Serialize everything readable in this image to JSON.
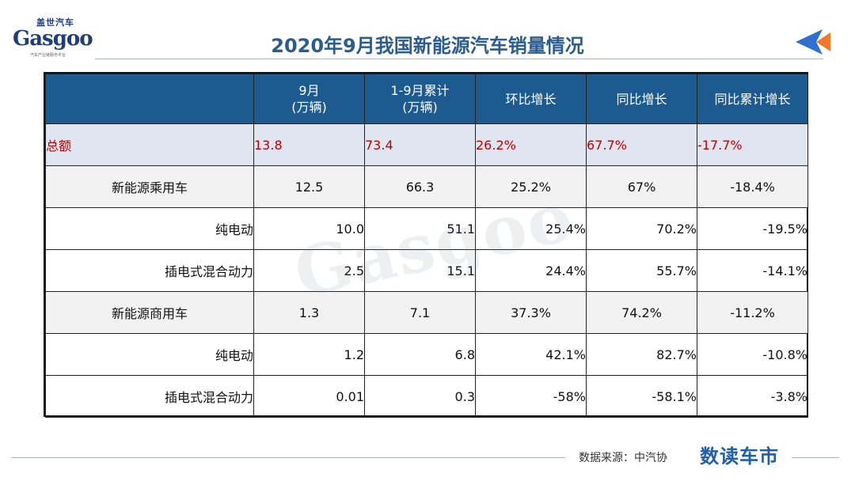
{
  "logo": {
    "top_text": "盖世汽车",
    "main_text": "Gasgoo",
    "sub_text": "汽车产业链服务平台"
  },
  "title": "2020年9月我国新能源汽车销量情况",
  "table": {
    "headers": [
      "",
      "9月\n(万辆)",
      "1-9月累计\n(万辆)",
      "环比增长",
      "同比增长",
      "同比累计增长"
    ],
    "total": {
      "label": "总额",
      "values": [
        "13.8",
        "73.4",
        "26.2%",
        "67.7%",
        "-17.7%"
      ]
    },
    "rows": [
      {
        "label": "新能源乘用车",
        "values": [
          "12.5",
          "66.3",
          "25.2%",
          "67%",
          "-18.4%"
        ]
      },
      {
        "label": "纯电动",
        "values": [
          "10.0",
          "51.1",
          "25.4%",
          "70.2%",
          "-19.5%"
        ]
      },
      {
        "label": "插电式混合动力",
        "values": [
          "2.5",
          "15.1",
          "24.4%",
          "55.7%",
          "-14.1%"
        ]
      },
      {
        "label": "新能源商用车",
        "values": [
          "1.3",
          "7.1",
          "37.3%",
          "74.2%",
          "-11.2%"
        ]
      },
      {
        "label": "纯电动",
        "values": [
          "1.2",
          "6.8",
          "42.1%",
          "82.7%",
          "-10.8%"
        ]
      },
      {
        "label": "插电式混合动力",
        "values": [
          "0.01",
          "0.3",
          "-58%",
          "-58.1%",
          "-3.8%"
        ]
      }
    ]
  },
  "watermark": "Gasgoo",
  "footer": {
    "source": "数据来源：中汽协",
    "brand": "数读车市"
  },
  "colors": {
    "header_bg": "#1d5a8f",
    "title": "#2b5c8f",
    "total_text": "#c00000",
    "accent_orange": "#f07a2a",
    "accent_blue": "#2e6fd1"
  }
}
